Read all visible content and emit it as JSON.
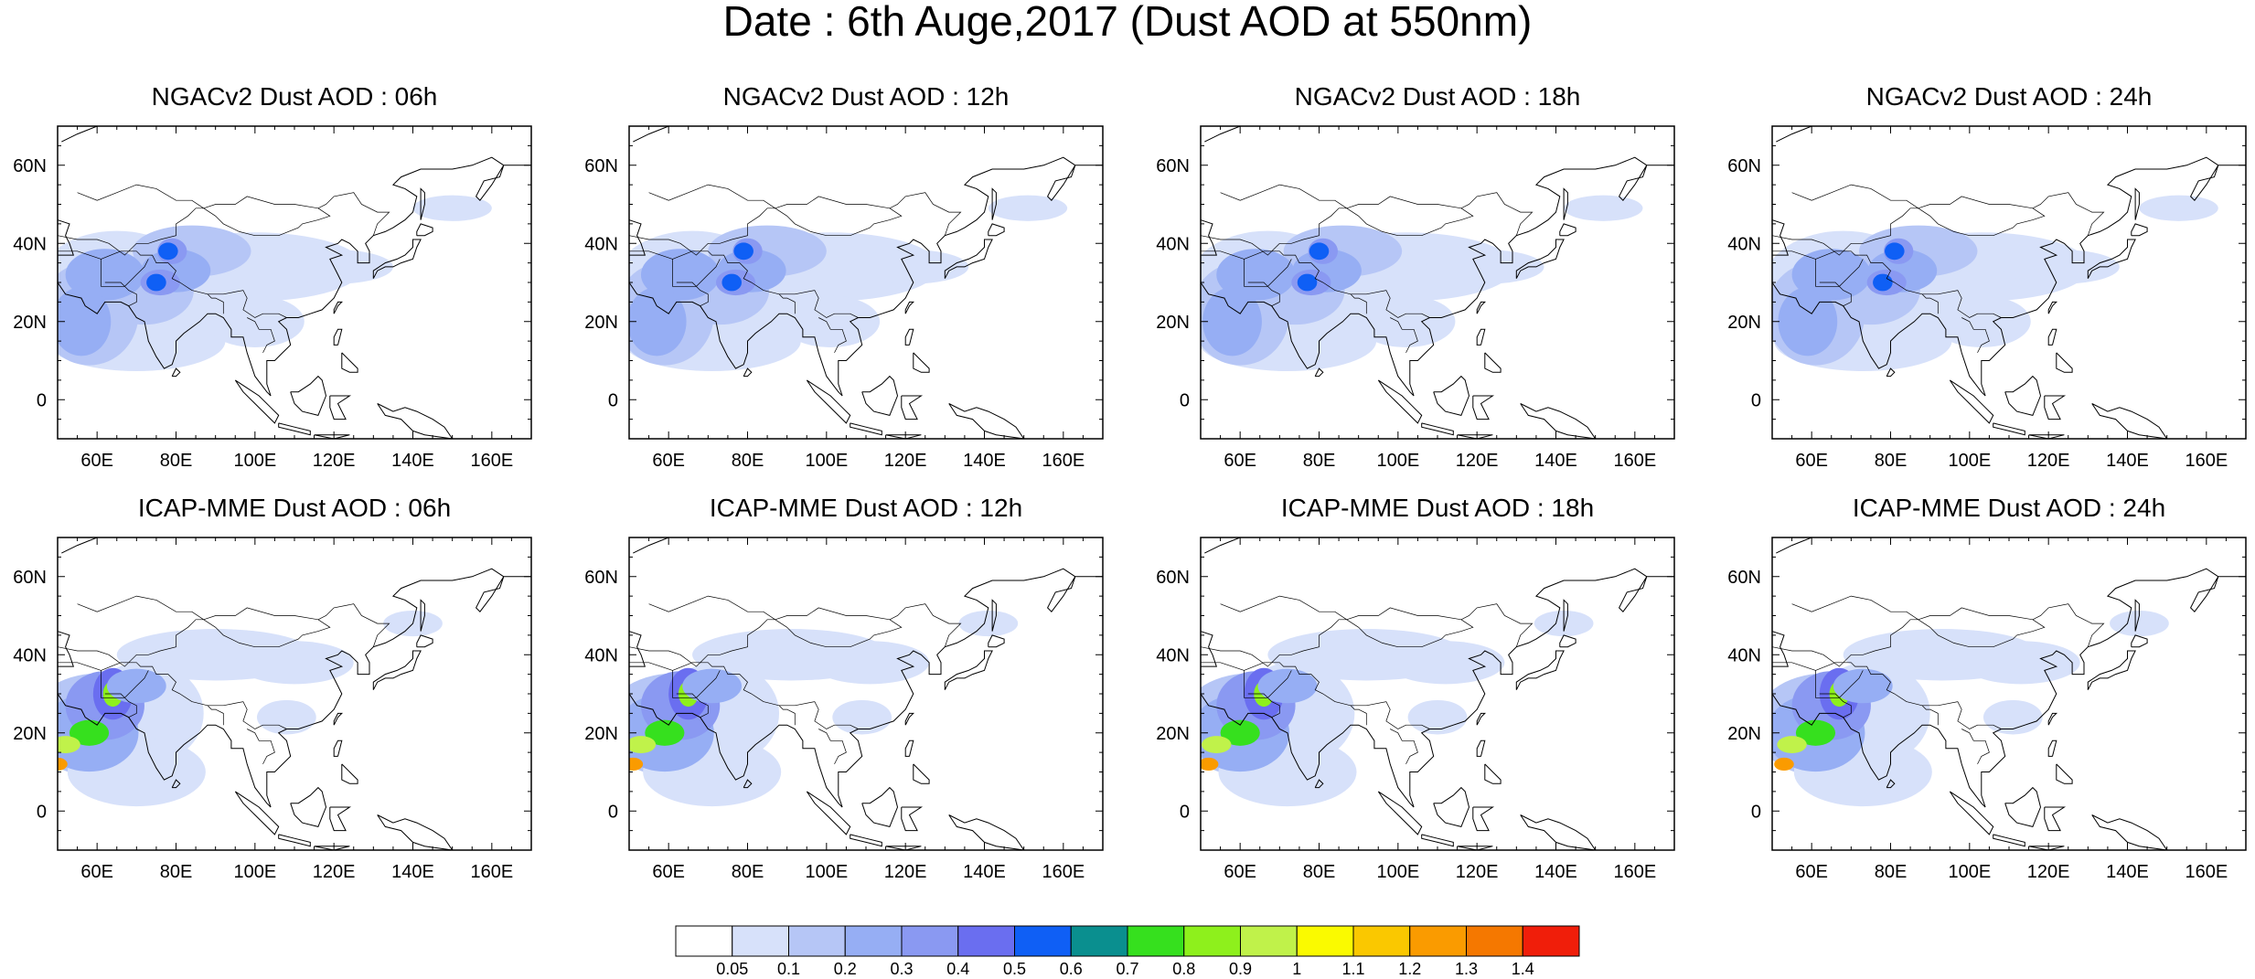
{
  "title": "Date : 6th Auge,2017 (Dust AOD at 550nm)",
  "panels": [
    {
      "title": "NGACv2 Dust AOD : 06h",
      "model": "NGACv2",
      "forecast_hour": "06h"
    },
    {
      "title": "NGACv2 Dust AOD : 12h",
      "model": "NGACv2",
      "forecast_hour": "12h"
    },
    {
      "title": "NGACv2 Dust AOD : 18h",
      "model": "NGACv2",
      "forecast_hour": "18h"
    },
    {
      "title": "NGACv2 Dust AOD : 24h",
      "model": "NGACv2",
      "forecast_hour": "24h"
    },
    {
      "title": "ICAP-MME Dust AOD : 06h",
      "model": "ICAP-MME",
      "forecast_hour": "06h"
    },
    {
      "title": "ICAP-MME Dust AOD : 12h",
      "model": "ICAP-MME",
      "forecast_hour": "12h"
    },
    {
      "title": "ICAP-MME Dust AOD : 18h",
      "model": "ICAP-MME",
      "forecast_hour": "18h"
    },
    {
      "title": "ICAP-MME Dust AOD : 24h",
      "model": "ICAP-MME",
      "forecast_hour": "24h"
    }
  ],
  "map": {
    "lon_range": [
      50,
      170
    ],
    "lat_range": [
      -10,
      70
    ],
    "lon_ticks": [
      "60E",
      "80E",
      "100E",
      "120E",
      "140E",
      "160E"
    ],
    "lon_tick_values": [
      60,
      80,
      100,
      120,
      140,
      160
    ],
    "lat_ticks": [
      "60N",
      "40N",
      "20N",
      "0"
    ],
    "lat_tick_values": [
      60,
      40,
      20,
      0
    ]
  },
  "colorbar": {
    "labels": [
      "0.05",
      "0.1",
      "0.2",
      "0.3",
      "0.4",
      "0.5",
      "0.6",
      "0.7",
      "0.8",
      "0.9",
      "1",
      "1.1",
      "1.2",
      "1.3",
      "1.4"
    ],
    "colors": [
      "#ffffff",
      "#d7e1fa",
      "#b6c6f6",
      "#96aef4",
      "#8a99f2",
      "#6a6ef0",
      "#0f5ff5",
      "#0a8f8f",
      "#36e01e",
      "#8ef01c",
      "#c0f24a",
      "#fafa00",
      "#fac800",
      "#fa9b00",
      "#f57800",
      "#f01e0a"
    ]
  }
}
